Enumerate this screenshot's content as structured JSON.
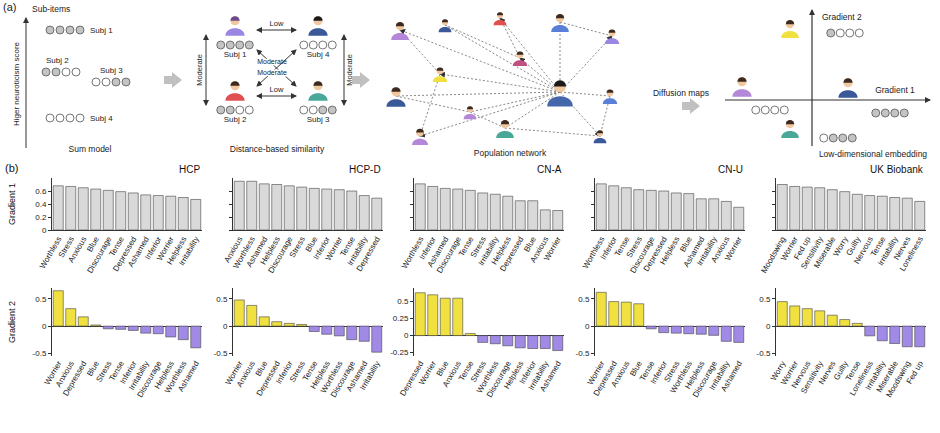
{
  "panel_a": {
    "label": "(a)",
    "sum_model": {
      "top_label": "Sub-items",
      "axis_label": "Higer neuroticism score",
      "caption": "Sum model",
      "subjects": [
        {
          "label": "Subj 1",
          "items": [
            1,
            1,
            1,
            1
          ]
        },
        {
          "label": "Subj 2",
          "items": [
            1,
            1,
            0,
            0
          ]
        },
        {
          "label": "Subj 3",
          "items": [
            0,
            0,
            1,
            1
          ]
        },
        {
          "label": "Subj 4",
          "items": [
            0,
            0,
            0,
            0
          ]
        }
      ]
    },
    "similarity": {
      "caption": "Distance-based similarity",
      "links": [
        {
          "from": "Subj 1",
          "to": "Subj 4",
          "label": "Low"
        },
        {
          "from": "Subj 2",
          "to": "Subj 3",
          "label": "Low"
        },
        {
          "from": "Subj 1",
          "to": "Subj 2",
          "label": "Moderate"
        },
        {
          "from": "Subj 4",
          "to": "Subj 3",
          "label": "Moderate"
        },
        {
          "from": "Subj 1",
          "to": "Subj 3",
          "label": "Moderate"
        },
        {
          "from": "Subj 4",
          "to": "Subj 2",
          "label": "Moderate"
        }
      ]
    },
    "network": {
      "caption": "Population network"
    },
    "method": "Diffusion maps",
    "embedding": {
      "caption": "Low-dimensional embedding",
      "axes": [
        "Gradient 1",
        "Gradient 2"
      ],
      "points": [
        {
          "items": [
            1,
            0,
            0,
            0
          ]
        },
        {
          "items": [
            1,
            1,
            1,
            1
          ]
        },
        {
          "items": [
            0,
            0,
            0,
            0
          ]
        },
        {
          "items": [
            0,
            1,
            1,
            1
          ]
        }
      ]
    }
  },
  "panel_b": {
    "label": "(b)"
  },
  "chart_data": [
    {
      "type": "bar",
      "title": "HCP",
      "ylabel": "Gradient 1",
      "color": "#d9d9d9",
      "categories": [
        "Worthless",
        "Stress",
        "Anxious",
        "Blue",
        "Discourage",
        "Tense",
        "Depressed",
        "Ashamed",
        "Inferior",
        "Worrier",
        "Helpless",
        "Irritability"
      ],
      "values": [
        0.68,
        0.67,
        0.65,
        0.63,
        0.61,
        0.59,
        0.57,
        0.54,
        0.53,
        0.52,
        0.5,
        0.47
      ],
      "ylim": [
        0,
        0.8
      ],
      "yticks": [
        0,
        0.2,
        0.4,
        0.6
      ],
      "grid": false
    },
    {
      "type": "bar",
      "title": "HCP-D",
      "color": "#d9d9d9",
      "tick_labels": "x",
      "categories": [
        "Anxious",
        "Worthless",
        "Ashamed",
        "Helpless",
        "Discourage",
        "Stress",
        "Blue",
        "Inferior",
        "Worrier",
        "Tense",
        "Irritability",
        "Depressed"
      ],
      "values": [
        0.75,
        0.75,
        0.71,
        0.7,
        0.68,
        0.66,
        0.64,
        0.63,
        0.62,
        0.6,
        0.53,
        0.49
      ],
      "ylim": [
        0,
        0.8
      ],
      "yticks": [
        0,
        0.2,
        0.4,
        0.6
      ],
      "grid": false
    },
    {
      "type": "bar",
      "title": "CN-A",
      "color": "#d9d9d9",
      "tick_labels": "x",
      "categories": [
        "Worthless",
        "Inferior",
        "Ashamed",
        "Discourage",
        "Tense",
        "Stress",
        "Irritability",
        "Helpless",
        "Depressed",
        "Blue",
        "Anxious",
        "Worrier"
      ],
      "values": [
        0.71,
        0.67,
        0.64,
        0.63,
        0.61,
        0.57,
        0.55,
        0.52,
        0.45,
        0.45,
        0.31,
        0.3
      ],
      "ylim": [
        0,
        0.8
      ],
      "yticks": [
        0,
        0.2,
        0.4,
        0.6
      ],
      "grid": false
    },
    {
      "type": "bar",
      "title": "CN-U",
      "color": "#d9d9d9",
      "tick_labels": "x",
      "categories": [
        "Worthless",
        "Inferior",
        "Tense",
        "Stress",
        "Discourage",
        "Depressed",
        "Helpless",
        "Blue",
        "Ashamed",
        "Irritability",
        "Anxious",
        "Worrier"
      ],
      "values": [
        0.71,
        0.68,
        0.65,
        0.62,
        0.61,
        0.6,
        0.57,
        0.56,
        0.48,
        0.48,
        0.44,
        0.35
      ],
      "ylim": [
        0,
        0.8
      ],
      "yticks": [
        0,
        0.2,
        0.4,
        0.6
      ],
      "grid": false
    },
    {
      "type": "bar",
      "title": "UK Biobank",
      "color": "#d9d9d9",
      "tick_labels": "x",
      "categories": [
        "Moodswing",
        "Worrier",
        "Fed up",
        "Sensitivity",
        "Miserable",
        "Worry",
        "Guilty",
        "Nervous",
        "Tense",
        "Irritability",
        "Nerves",
        "Loneliness"
      ],
      "values": [
        0.7,
        0.67,
        0.66,
        0.65,
        0.62,
        0.59,
        0.55,
        0.53,
        0.52,
        0.5,
        0.49,
        0.44
      ],
      "ylim": [
        0,
        0.8
      ],
      "yticks": [
        0,
        0.2,
        0.4,
        0.6
      ],
      "grid": false
    },
    {
      "type": "bar",
      "ylabel": "Gradient 2",
      "categories": [
        "Worrier",
        "Anxious",
        "Depressed",
        "Blue",
        "Stress",
        "Tense",
        "Inferior",
        "Irritability",
        "Discourage",
        "Helpless",
        "Worthless",
        "Ashamed"
      ],
      "values": [
        0.65,
        0.32,
        0.17,
        0.02,
        -0.05,
        -0.06,
        -0.08,
        -0.13,
        -0.14,
        -0.2,
        -0.25,
        -0.4
      ],
      "colors": [
        "#f0e040",
        "#f0e040",
        "#f0e040",
        "#f0e040",
        "#a08ae6",
        "#a08ae6",
        "#a08ae6",
        "#a08ae6",
        "#a08ae6",
        "#a08ae6",
        "#a08ae6",
        "#a08ae6"
      ],
      "ylim": [
        -0.55,
        0.7
      ],
      "yticks": [
        -0.5,
        0,
        0.5
      ],
      "grid": false
    },
    {
      "type": "bar",
      "categories": [
        "Worrier",
        "Anxious",
        "Blue",
        "Depressed",
        "Inferior",
        "Stress",
        "Tense",
        "Helpless",
        "Worthless",
        "Discourage",
        "Ashamed",
        "Irritability"
      ],
      "values": [
        0.48,
        0.38,
        0.17,
        0.08,
        0.05,
        0.03,
        -0.1,
        -0.15,
        -0.18,
        -0.25,
        -0.28,
        -0.48
      ],
      "colors": [
        "#f0e040",
        "#f0e040",
        "#f0e040",
        "#f0e040",
        "#f0e040",
        "#f0e040",
        "#a08ae6",
        "#a08ae6",
        "#a08ae6",
        "#a08ae6",
        "#a08ae6",
        "#a08ae6"
      ],
      "ylim": [
        -0.55,
        0.7
      ],
      "yticks": [
        -0.5,
        0,
        0.5
      ],
      "grid": false
    },
    {
      "type": "bar",
      "categories": [
        "Depressed",
        "Worrier",
        "Blue",
        "Anxious",
        "Tense",
        "Stress",
        "Worthless",
        "Discourage",
        "Helpless",
        "Inferior",
        "Irritability",
        "Ashamed"
      ],
      "values": [
        0.63,
        0.6,
        0.55,
        0.55,
        0.03,
        -0.1,
        -0.12,
        -0.15,
        -0.18,
        -0.19,
        -0.19,
        -0.22
      ],
      "colors": [
        "#f0e040",
        "#f0e040",
        "#f0e040",
        "#f0e040",
        "#f0e040",
        "#a08ae6",
        "#a08ae6",
        "#a08ae6",
        "#a08ae6",
        "#a08ae6",
        "#a08ae6",
        "#a08ae6"
      ],
      "ylim": [
        -0.3,
        0.7
      ],
      "yticks": [
        -0.25,
        0,
        0.25,
        0.5
      ],
      "grid": false
    },
    {
      "type": "bar",
      "categories": [
        "Worrier",
        "Depressed",
        "Anxious",
        "Blue",
        "Tense",
        "Inferior",
        "Stress",
        "Worthless",
        "Helpless",
        "Discourage",
        "Irritability",
        "Ashamed"
      ],
      "values": [
        0.62,
        0.45,
        0.44,
        0.41,
        -0.05,
        -0.12,
        -0.13,
        -0.14,
        -0.15,
        -0.17,
        -0.28,
        -0.3
      ],
      "colors": [
        "#f0e040",
        "#f0e040",
        "#f0e040",
        "#f0e040",
        "#a08ae6",
        "#a08ae6",
        "#a08ae6",
        "#a08ae6",
        "#a08ae6",
        "#a08ae6",
        "#a08ae6",
        "#a08ae6"
      ],
      "ylim": [
        -0.55,
        0.7
      ],
      "yticks": [
        -0.5,
        0,
        0.5
      ],
      "grid": false
    },
    {
      "type": "bar",
      "categories": [
        "Worry",
        "Worrier",
        "Nervous",
        "Sensitivity",
        "Nerves",
        "Guilty",
        "Tense",
        "Loneliness",
        "Irritability",
        "Miserable",
        "Moodswing",
        "Fed up"
      ],
      "values": [
        0.45,
        0.37,
        0.32,
        0.28,
        0.2,
        0.12,
        0.05,
        -0.18,
        -0.27,
        -0.32,
        -0.38,
        -0.38
      ],
      "colors": [
        "#f0e040",
        "#f0e040",
        "#f0e040",
        "#f0e040",
        "#f0e040",
        "#f0e040",
        "#f0e040",
        "#a08ae6",
        "#a08ae6",
        "#a08ae6",
        "#a08ae6",
        "#a08ae6"
      ],
      "ylim": [
        -0.55,
        0.7
      ],
      "yticks": [
        -0.5,
        0,
        0.5
      ],
      "grid": false
    }
  ]
}
